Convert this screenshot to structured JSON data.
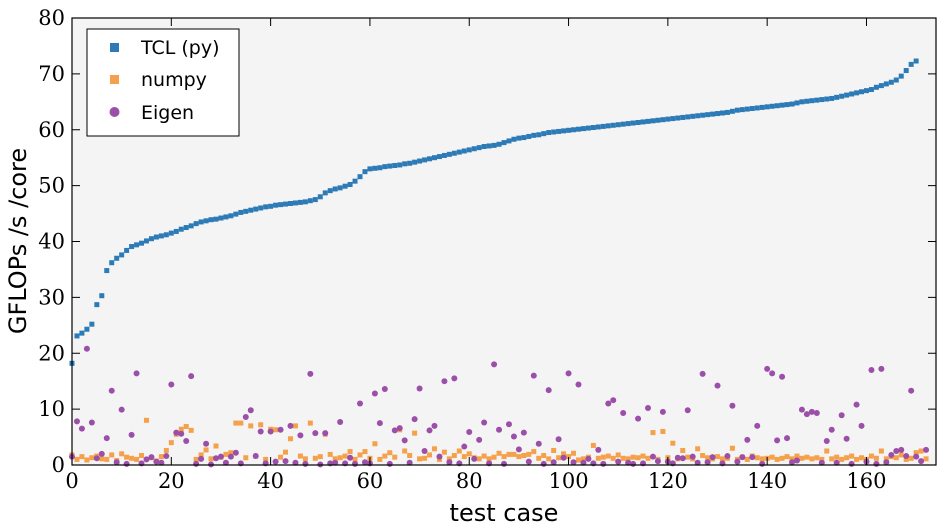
{
  "chart_data": {
    "type": "scatter",
    "xlabel": "test case",
    "ylabel": "GFLOPs /s /core",
    "xlim": [
      0,
      174
    ],
    "ylim": [
      0,
      80
    ],
    "xticks": [
      0,
      20,
      40,
      60,
      80,
      100,
      120,
      140,
      160
    ],
    "yticks": [
      0,
      10,
      20,
      30,
      40,
      50,
      60,
      70,
      80
    ],
    "grid": false,
    "legend": "top-left",
    "series": [
      {
        "name": "TCL (py)",
        "marker": "square",
        "color": "#2c7bb6",
        "y": [
          18.2,
          23.1,
          23.6,
          24.3,
          25.2,
          28.7,
          30.3,
          34.8,
          36.2,
          37.0,
          37.6,
          38.4,
          39.1,
          39.4,
          39.7,
          40.1,
          40.5,
          40.8,
          41.0,
          41.2,
          41.5,
          41.8,
          42.2,
          42.5,
          42.8,
          43.2,
          43.5,
          43.7,
          43.9,
          44.0,
          44.2,
          44.4,
          44.6,
          44.9,
          45.2,
          45.4,
          45.6,
          45.8,
          46.0,
          46.2,
          46.3,
          46.5,
          46.6,
          46.7,
          46.8,
          46.9,
          47.0,
          47.1,
          47.3,
          47.5,
          48.0,
          48.7,
          49.1,
          49.4,
          49.6,
          49.9,
          50.2,
          50.8,
          51.6,
          52.5,
          53.0,
          53.1,
          53.2,
          53.4,
          53.5,
          53.6,
          53.7,
          53.9,
          54.0,
          54.2,
          54.4,
          54.6,
          54.8,
          55.0,
          55.2,
          55.4,
          55.6,
          55.8,
          56.0,
          56.2,
          56.4,
          56.6,
          56.8,
          57.0,
          57.1,
          57.2,
          57.4,
          57.7,
          58.0,
          58.3,
          58.5,
          58.6,
          58.8,
          59.0,
          59.1,
          59.3,
          59.5,
          59.6,
          59.7,
          59.8,
          59.9,
          60.0,
          60.1,
          60.2,
          60.3,
          60.4,
          60.5,
          60.6,
          60.7,
          60.8,
          60.9,
          61.0,
          61.1,
          61.2,
          61.3,
          61.4,
          61.5,
          61.6,
          61.7,
          61.8,
          61.9,
          62.0,
          62.1,
          62.2,
          62.3,
          62.4,
          62.5,
          62.6,
          62.7,
          62.8,
          62.9,
          63.0,
          63.1,
          63.3,
          63.5,
          63.6,
          63.7,
          63.8,
          63.9,
          64.0,
          64.1,
          64.2,
          64.3,
          64.4,
          64.5,
          64.6,
          64.8,
          65.0,
          65.1,
          65.2,
          65.3,
          65.4,
          65.5,
          65.6,
          65.8,
          66.0,
          66.2,
          66.4,
          66.6,
          66.8,
          67.0,
          67.2,
          67.6,
          67.9,
          68.2,
          68.5,
          68.9,
          69.6,
          70.6,
          71.7,
          72.3
        ]
      },
      {
        "name": "numpy",
        "marker": "square",
        "color": "#f5a04a",
        "y": [
          1.8,
          1.0,
          1.5,
          0.9,
          1.3,
          1.6,
          1.1,
          1.0,
          1.8,
          0.8,
          2.0,
          1.4,
          1.2,
          1.0,
          1.7,
          8.0,
          1.3,
          0.7,
          1.5,
          2.6,
          4.0,
          5.5,
          6.4,
          6.9,
          6.2,
          1.0,
          1.8,
          2.7,
          1.1,
          3.4,
          1.4,
          1.9,
          2.2,
          7.5,
          7.5,
          1.3,
          7.0,
          1.6,
          7.2,
          1.0,
          6.4,
          6.3,
          1.4,
          2.3,
          4.7,
          7.0,
          1.6,
          1.1,
          7.5,
          1.2,
          1.5,
          5.5,
          1.9,
          1.1,
          1.3,
          1.6,
          2.4,
          1.0,
          1.8,
          2.4,
          1.2,
          3.8,
          1.0,
          1.6,
          2.2,
          1.4,
          6.3,
          2.5,
          1.7,
          5.7,
          1.1,
          1.2,
          1.8,
          2.9,
          1.0,
          2.3,
          1.1,
          1.7,
          2.5,
          1.5,
          2.0,
          1.3,
          1.1,
          1.6,
          1.1,
          1.4,
          2.1,
          1.5,
          1.9,
          1.9,
          1.5,
          1.7,
          1.9,
          2.4,
          1.2,
          1.7,
          1.1,
          2.6,
          1.3,
          2.0,
          1.5,
          2.1,
          0.9,
          1.1,
          1.4,
          3.5,
          1.2,
          1.4,
          1.6,
          1.2,
          1.8,
          1.2,
          1.1,
          1.4,
          1.3,
          1.6,
          1.2,
          5.8,
          1.0,
          6.0,
          1.3,
          3.9,
          1.1,
          2.6,
          1.4,
          1.1,
          2.9,
          1.7,
          1.3,
          1.1,
          1.5,
          1.1,
          1.2,
          3.0,
          1.0,
          1.4,
          1.0,
          1.6,
          1.3,
          1.1,
          1.2,
          1.4,
          1.0,
          1.2,
          1.5,
          1.1,
          1.6,
          1.2,
          1.4,
          1.1,
          1.3,
          1.0,
          2.5,
          1.1,
          1.4,
          1.0,
          1.3,
          1.6,
          1.0,
          1.3,
          1.0,
          1.6,
          1.2,
          2.5,
          1.1,
          1.5,
          1.3,
          1.8,
          1.0,
          1.2,
          2.2,
          2.5,
          1.1
        ]
      },
      {
        "name": "Eigen",
        "marker": "circle",
        "color": "#9b4fa8",
        "y": [
          1.5,
          7.8,
          6.5,
          20.8,
          7.6,
          1.2,
          2.0,
          4.8,
          13.3,
          0.5,
          9.9,
          0.2,
          5.4,
          16.4,
          0.3,
          1.0,
          1.4,
          0.6,
          0.4,
          1.6,
          14.4,
          5.8,
          5.6,
          4.3,
          15.9,
          0.2,
          1.1,
          3.8,
          0.1,
          1.2,
          1.5,
          0.4,
          1.5,
          2.2,
          0.3,
          8.6,
          9.8,
          1.6,
          6.0,
          0.3,
          6.0,
          0.6,
          6.3,
          0.7,
          7.0,
          0.4,
          5.3,
          0.2,
          16.3,
          5.7,
          0.1,
          5.7,
          0.3,
          0.4,
          7.7,
          0.3,
          1.3,
          0.2,
          11.0,
          0.5,
          0.3,
          12.8,
          7.5,
          13.6,
          0.2,
          6.2,
          6.6,
          4.4,
          0.4,
          8.2,
          13.7,
          2.5,
          6.2,
          7.0,
          1.5,
          15.0,
          0.5,
          15.5,
          0.3,
          3.3,
          5.9,
          1.1,
          4.5,
          7.6,
          0.3,
          18.0,
          6.3,
          0.2,
          7.3,
          5.1,
          2.8,
          5.8,
          0.6,
          16.0,
          3.8,
          0.2,
          13.4,
          0.5,
          4.6,
          1.3,
          16.4,
          0.5,
          14.4,
          0.4,
          1.1,
          0.3,
          2.7,
          0.2,
          11.0,
          11.6,
          0.6,
          9.3,
          0.4,
          0.2,
          8.3,
          0.3,
          10.2,
          1.5,
          0.7,
          9.5,
          0.6,
          0.3,
          1.3,
          1.2,
          9.8,
          1.5,
          0.4,
          16.3,
          0.5,
          1.4,
          14.2,
          0.3,
          1.6,
          10.6,
          0.6,
          1.4,
          4.5,
          1.4,
          7.0,
          0.2,
          17.2,
          16.4,
          4.4,
          15.8,
          4.8,
          0.5,
          0.8,
          9.9,
          9.1,
          9.5,
          9.3,
          0.4,
          4.3,
          6.3,
          0.4,
          8.9,
          4.7,
          0.2,
          10.8,
          7.0,
          0.6,
          17.0,
          0.2,
          17.2,
          0.5,
          1.8,
          2.5,
          2.7,
          1.6,
          13.3,
          1.5,
          0.7,
          2.7
        ]
      }
    ]
  }
}
